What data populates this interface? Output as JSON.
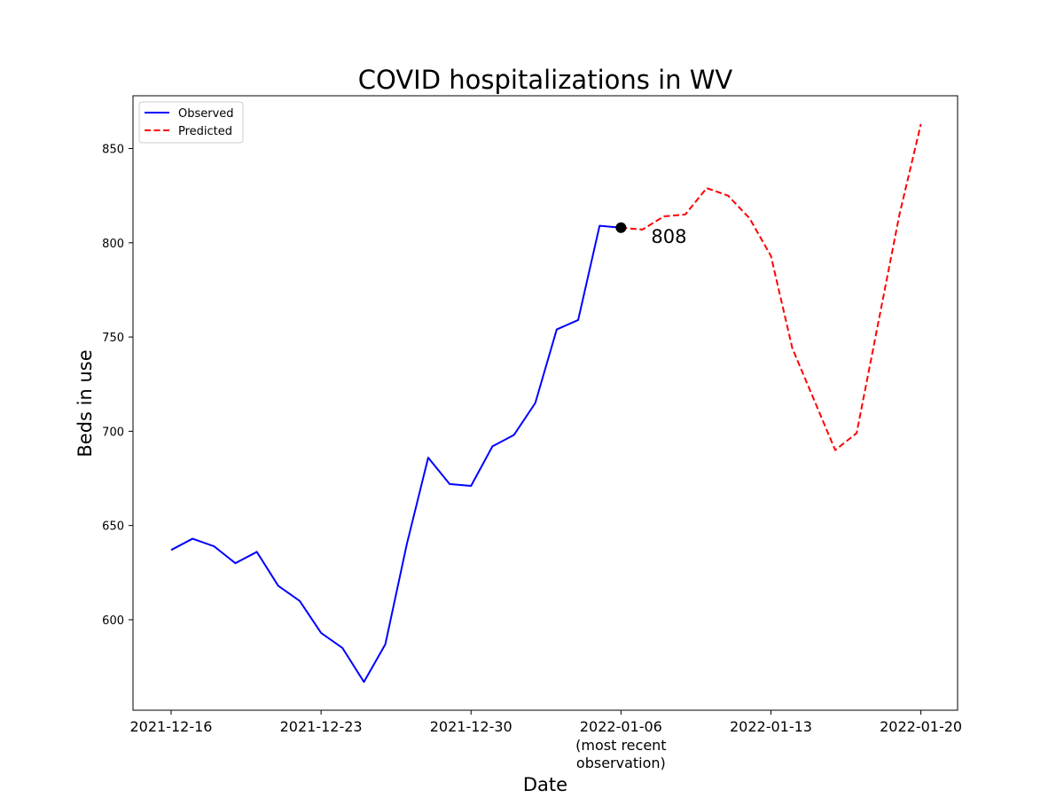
{
  "chart_data": {
    "type": "line",
    "title": "COVID hospitalizations in WV",
    "xlabel": "Date",
    "ylabel": "Beds in use",
    "ylim": [
      552,
      878
    ],
    "yticks": [
      600,
      650,
      700,
      750,
      800,
      850
    ],
    "x_start": "2021-12-16",
    "xticks": [
      {
        "day": 0,
        "label": "2021-12-16"
      },
      {
        "day": 7,
        "label": "2021-12-23"
      },
      {
        "day": 14,
        "label": "2021-12-30"
      },
      {
        "day": 21,
        "label": "2022-01-06",
        "sublabel1": "(most recent",
        "sublabel2": "observation)"
      },
      {
        "day": 28,
        "label": "2022-01-13"
      },
      {
        "day": 35,
        "label": "2022-01-20"
      }
    ],
    "legend_position": "upper-left",
    "series": [
      {
        "name": "Observed",
        "color": "#0000ff",
        "style": "solid",
        "x": [
          0,
          1,
          2,
          3,
          4,
          5,
          6,
          7,
          8,
          9,
          10,
          11,
          12,
          13,
          14,
          15,
          16,
          17,
          18,
          19,
          20,
          21
        ],
        "values": [
          637,
          643,
          639,
          630,
          636,
          618,
          610,
          593,
          585,
          567,
          587,
          640,
          686,
          672,
          671,
          692,
          698,
          715,
          754,
          759,
          809,
          808
        ]
      },
      {
        "name": "Predicted",
        "color": "#ff0000",
        "style": "dashed",
        "x": [
          21,
          22,
          23,
          24,
          25,
          26,
          27,
          28,
          29,
          30,
          31,
          32,
          33,
          34,
          35
        ],
        "values": [
          808,
          807,
          814,
          815,
          829,
          825,
          813,
          793,
          744,
          717,
          690,
          699,
          757,
          815,
          863
        ]
      }
    ],
    "annotation": {
      "x": 21,
      "y": 808,
      "label": "808",
      "color": "#000000"
    }
  }
}
